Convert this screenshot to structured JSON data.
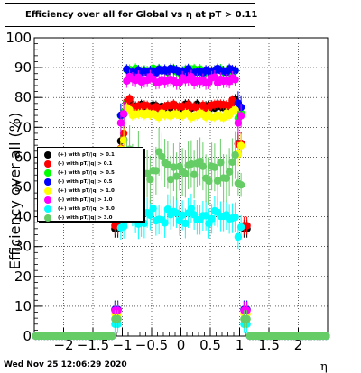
{
  "header": {
    "title": "Efficiency over all for Global vs   η at pT > 0.11"
  },
  "footer": {
    "timestamp": "Wed Nov 25 12:06:29 2020"
  },
  "chart_data": {
    "type": "scatter",
    "title": "Efficiency over all for Global vs   η at pT > 0.11",
    "xlabel": "η",
    "ylabel": "Efficiency over all (%)",
    "xlim": [
      -2.5,
      2.5
    ],
    "ylim": [
      0,
      100
    ],
    "xticks": [
      -2,
      -1.5,
      -1,
      -0.5,
      0,
      0.5,
      1,
      1.5,
      2
    ],
    "xtick_labels": [
      "−2",
      "−1.5",
      "−1",
      "−0.5",
      "0",
      "0.5",
      "1",
      "1.5",
      "2"
    ],
    "yticks": [
      0,
      10,
      20,
      30,
      40,
      50,
      60,
      70,
      80,
      90,
      100
    ],
    "ytick_labels": [
      "0",
      "10",
      "20",
      "30",
      "40",
      "50",
      "60",
      "70",
      "80",
      "90",
      "100"
    ],
    "grid": true,
    "legend_position": "left-middle",
    "series": [
      {
        "name": "(+) with pT/|q| > 0.1",
        "color": "#000000",
        "plateau": 77,
        "edge": 36,
        "noise": 0.8
      },
      {
        "name": "(-) with pT/|q| > 0.1",
        "color": "#ff0000",
        "plateau": 77,
        "edge": 37,
        "noise": 0.8
      },
      {
        "name": "(+) with pT/|q| > 0.5",
        "color": "#00ff00",
        "plateau": 89,
        "edge": 0,
        "noise": 0.8
      },
      {
        "name": "(-) with pT/|q| > 0.5",
        "color": "#0000ff",
        "plateau": 89,
        "edge": 0,
        "noise": 0.8
      },
      {
        "name": "(+) with pT/|q| > 1.0",
        "color": "#ffff00",
        "plateau": 74,
        "edge": 0,
        "noise": 0.8
      },
      {
        "name": "(-) with pT/|q| > 1.0",
        "color": "#ff00ff",
        "plateau": 86,
        "edge": 0,
        "noise": 1.2
      },
      {
        "name": "(+) with pT/|q| > 3.0",
        "color": "#00ffff",
        "plateau": 40,
        "edge": 0,
        "noise": 3.0
      },
      {
        "name": "(-) with pT/|q| > 3.0",
        "color": "#66cc66",
        "plateau": 57,
        "edge": 0,
        "noise": 5.0
      }
    ]
  }
}
